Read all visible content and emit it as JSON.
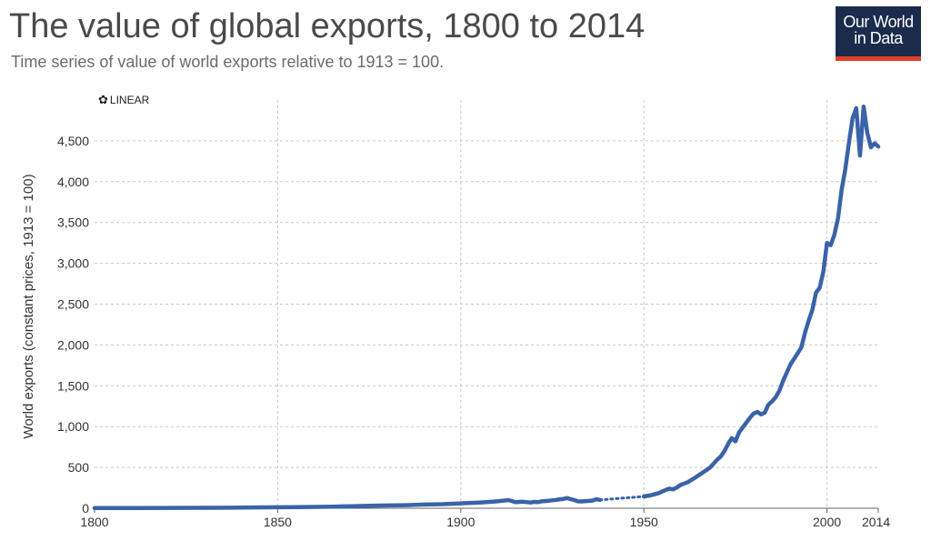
{
  "header": {
    "title": "The value of global exports, 1800 to 2014",
    "subtitle": "Time series of value of world exports relative to 1913 = 100.",
    "logo_line1": "Our World",
    "logo_line2": "in Data"
  },
  "controls": {
    "scale_label": "LINEAR",
    "scale_icon": "gear-icon"
  },
  "colors": {
    "line": "#3a63a8",
    "grid": "#c8c8c8",
    "logo_bg": "#1a2b4c",
    "logo_accent": "#e0412a"
  },
  "chart_data": {
    "type": "line",
    "title": "The value of global exports, 1800 to 2014",
    "ylabel": "World exports (constant prices, 1913 = 100)",
    "xlabel": "",
    "xlim": [
      1800,
      2014
    ],
    "ylim": [
      0,
      5000
    ],
    "x_ticks": [
      1800,
      1850,
      1900,
      1950,
      2000,
      2014
    ],
    "y_ticks": [
      0,
      500,
      1000,
      1500,
      2000,
      2500,
      3000,
      3500,
      4000,
      4500
    ],
    "y_tick_labels": [
      "0",
      "500",
      "1,000",
      "1,500",
      "2,000",
      "2,500",
      "3,000",
      "3,500",
      "4,000",
      "4,500"
    ],
    "grid": true,
    "gap": [
      1938,
      1950
    ],
    "series": [
      {
        "name": "",
        "points": [
          [
            1800,
            2
          ],
          [
            1810,
            3
          ],
          [
            1820,
            4
          ],
          [
            1830,
            6
          ],
          [
            1840,
            8
          ],
          [
            1850,
            12
          ],
          [
            1855,
            14
          ],
          [
            1860,
            17
          ],
          [
            1865,
            20
          ],
          [
            1870,
            26
          ],
          [
            1875,
            30
          ],
          [
            1880,
            35
          ],
          [
            1885,
            38
          ],
          [
            1890,
            46
          ],
          [
            1895,
            50
          ],
          [
            1900,
            60
          ],
          [
            1905,
            70
          ],
          [
            1910,
            85
          ],
          [
            1913,
            100
          ],
          [
            1915,
            75
          ],
          [
            1917,
            80
          ],
          [
            1919,
            70
          ],
          [
            1920,
            78
          ],
          [
            1921,
            75
          ],
          [
            1922,
            85
          ],
          [
            1924,
            92
          ],
          [
            1926,
            103
          ],
          [
            1927,
            110
          ],
          [
            1928,
            115
          ],
          [
            1929,
            125
          ],
          [
            1930,
            112
          ],
          [
            1931,
            100
          ],
          [
            1932,
            85
          ],
          [
            1933,
            83
          ],
          [
            1934,
            88
          ],
          [
            1935,
            90
          ],
          [
            1936,
            95
          ],
          [
            1937,
            110
          ],
          [
            1938,
            102
          ],
          [
            1950,
            145
          ],
          [
            1952,
            160
          ],
          [
            1954,
            185
          ],
          [
            1955,
            205
          ],
          [
            1956,
            225
          ],
          [
            1957,
            240
          ],
          [
            1958,
            232
          ],
          [
            1959,
            255
          ],
          [
            1960,
            285
          ],
          [
            1962,
            320
          ],
          [
            1964,
            375
          ],
          [
            1966,
            435
          ],
          [
            1968,
            495
          ],
          [
            1969,
            545
          ],
          [
            1970,
            595
          ],
          [
            1971,
            635
          ],
          [
            1972,
            700
          ],
          [
            1973,
            790
          ],
          [
            1974,
            860
          ],
          [
            1975,
            820
          ],
          [
            1976,
            930
          ],
          [
            1977,
            990
          ],
          [
            1978,
            1050
          ],
          [
            1979,
            1110
          ],
          [
            1980,
            1160
          ],
          [
            1981,
            1180
          ],
          [
            1982,
            1150
          ],
          [
            1983,
            1170
          ],
          [
            1984,
            1270
          ],
          [
            1985,
            1310
          ],
          [
            1986,
            1360
          ],
          [
            1987,
            1440
          ],
          [
            1988,
            1560
          ],
          [
            1989,
            1660
          ],
          [
            1990,
            1760
          ],
          [
            1991,
            1830
          ],
          [
            1992,
            1900
          ],
          [
            1993,
            1970
          ],
          [
            1994,
            2150
          ],
          [
            1995,
            2300
          ],
          [
            1996,
            2430
          ],
          [
            1997,
            2640
          ],
          [
            1998,
            2700
          ],
          [
            1999,
            2900
          ],
          [
            2000,
            3250
          ],
          [
            2001,
            3220
          ],
          [
            2002,
            3350
          ],
          [
            2003,
            3550
          ],
          [
            2004,
            3900
          ],
          [
            2005,
            4150
          ],
          [
            2006,
            4480
          ],
          [
            2007,
            4780
          ],
          [
            2008,
            4900
          ],
          [
            2009,
            4320
          ],
          [
            2010,
            4920
          ],
          [
            2011,
            4600
          ],
          [
            2012,
            4420
          ],
          [
            2013,
            4470
          ],
          [
            2014,
            4430
          ]
        ]
      }
    ]
  }
}
